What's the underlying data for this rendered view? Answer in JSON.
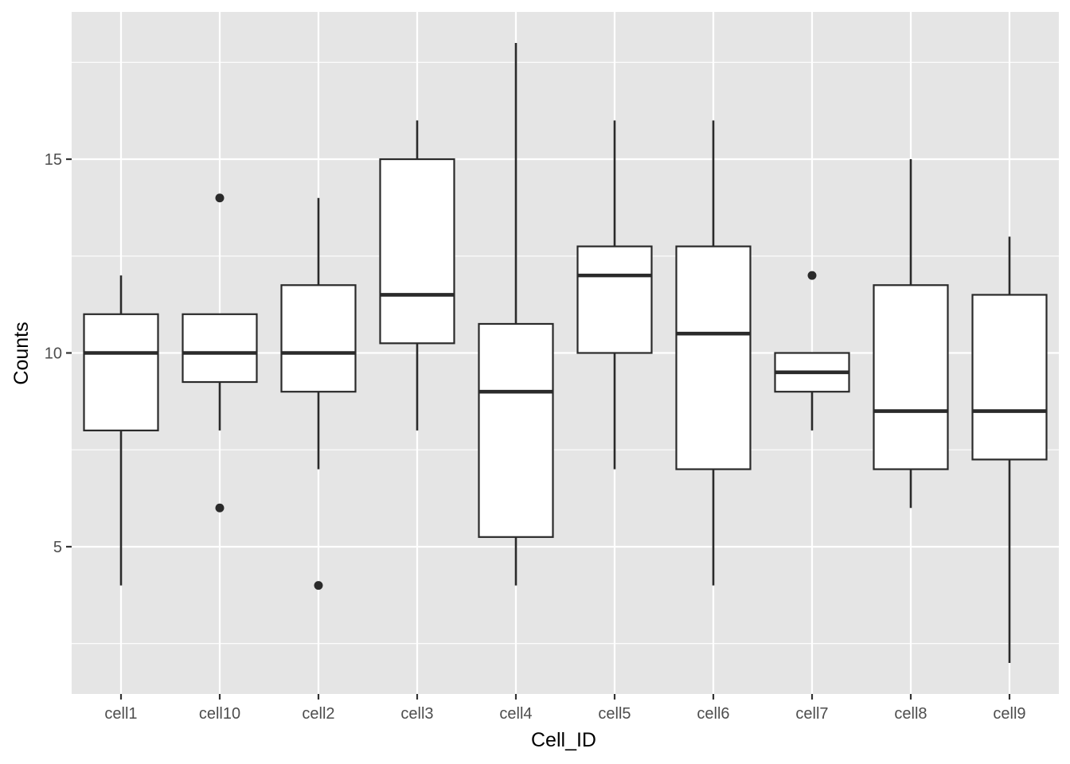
{
  "chart_data": {
    "type": "boxplot",
    "xlabel": "Cell_ID",
    "ylabel": "Counts",
    "ylim": [
      1.2,
      18.8
    ],
    "y_ticks": [
      5,
      10,
      15
    ],
    "y_minor_ticks": [
      2.5,
      7.5,
      12.5,
      17.5
    ],
    "grid": true,
    "colors": {
      "panel_bg": "#e5e5e5",
      "grid": "#ffffff",
      "box_fill": "#ffffff",
      "box_line": "#2a2a2a"
    },
    "categories": [
      "cell1",
      "cell10",
      "cell2",
      "cell3",
      "cell4",
      "cell5",
      "cell6",
      "cell7",
      "cell8",
      "cell9"
    ],
    "boxes": [
      {
        "category": "cell1",
        "whisker_low": 4,
        "q1": 8,
        "median": 10,
        "q3": 11,
        "whisker_high": 12,
        "outliers": []
      },
      {
        "category": "cell10",
        "whisker_low": 8,
        "q1": 9.25,
        "median": 10,
        "q3": 11,
        "whisker_high": 11,
        "outliers": [
          14,
          6
        ]
      },
      {
        "category": "cell2",
        "whisker_low": 7,
        "q1": 9,
        "median": 10,
        "q3": 11.75,
        "whisker_high": 14,
        "outliers": [
          4
        ]
      },
      {
        "category": "cell3",
        "whisker_low": 8,
        "q1": 10.25,
        "median": 11.5,
        "q3": 15,
        "whisker_high": 16,
        "outliers": []
      },
      {
        "category": "cell4",
        "whisker_low": 4,
        "q1": 5.25,
        "median": 9,
        "q3": 10.75,
        "whisker_high": 18,
        "outliers": []
      },
      {
        "category": "cell5",
        "whisker_low": 7,
        "q1": 10,
        "median": 12,
        "q3": 12.75,
        "whisker_high": 16,
        "outliers": []
      },
      {
        "category": "cell6",
        "whisker_low": 4,
        "q1": 7,
        "median": 10.5,
        "q3": 12.75,
        "whisker_high": 16,
        "outliers": []
      },
      {
        "category": "cell7",
        "whisker_low": 8,
        "q1": 9,
        "median": 9.5,
        "q3": 10,
        "whisker_high": 10,
        "outliers": [
          12
        ]
      },
      {
        "category": "cell8",
        "whisker_low": 6,
        "q1": 7,
        "median": 8.5,
        "q3": 11.75,
        "whisker_high": 15,
        "outliers": []
      },
      {
        "category": "cell9",
        "whisker_low": 2,
        "q1": 7.25,
        "median": 8.5,
        "q3": 11.5,
        "whisker_high": 13,
        "outliers": []
      }
    ]
  }
}
